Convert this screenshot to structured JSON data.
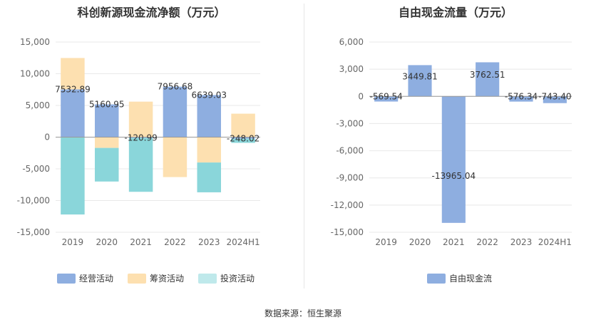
{
  "left": {
    "title": "科创新源现金流净额（万元）",
    "legend": [
      "经营活动",
      "筹资活动",
      "投资活动"
    ]
  },
  "right": {
    "title": "自由现金流量（万元）",
    "legend": [
      "自由现金流"
    ]
  },
  "source": "数据来源：恒生聚源",
  "colors": {
    "operating": "#8eaee0",
    "financing": "#fde0b0",
    "investing": "#8ad6da",
    "free": "#8eaee0",
    "grid": "#e8e8e8",
    "axis": "#999999"
  },
  "chart_data": [
    {
      "type": "bar",
      "stacked": true,
      "title": "科创新源现金流净额（万元）",
      "categories": [
        "2019",
        "2020",
        "2021",
        "2022",
        "2023",
        "2024H1"
      ],
      "ylim": [
        -15000,
        15000
      ],
      "yticks": [
        15000,
        10000,
        5000,
        0,
        -5000,
        -10000,
        -15000
      ],
      "ytick_labels": [
        "15,000",
        "10,000",
        "5,000",
        "0",
        "-5,000",
        "-10,000",
        "-15,000"
      ],
      "series": [
        {
          "name": "经营活动",
          "values": [
            7532.89,
            5160.95,
            -120.99,
            7956.68,
            6639.03,
            -248.02
          ]
        },
        {
          "name": "筹资活动",
          "values": [
            4950,
            -1700,
            5600,
            -6300,
            -4000,
            3700
          ]
        },
        {
          "name": "投资活动",
          "values": [
            -12200,
            -5300,
            -8500,
            0,
            -4700,
            -650
          ]
        }
      ],
      "data_labels": [
        "7532.89",
        "5160.95",
        "-120.99",
        "7956.68",
        "6639.03",
        "-248.02"
      ],
      "legend_position": "bottom"
    },
    {
      "type": "bar",
      "title": "自由现金流量（万元）",
      "categories": [
        "2019",
        "2020",
        "2021",
        "2022",
        "2023",
        "2024H1"
      ],
      "ylim": [
        -15000,
        6000
      ],
      "yticks": [
        6000,
        3000,
        0,
        -3000,
        -6000,
        -9000,
        -12000,
        -15000
      ],
      "ytick_labels": [
        "6,000",
        "3,000",
        "0",
        "-3,000",
        "-6,000",
        "-9,000",
        "-12,000",
        "-15,000"
      ],
      "series": [
        {
          "name": "自由现金流",
          "values": [
            -569.54,
            3449.81,
            -13965.04,
            3762.51,
            -576.34,
            -743.4
          ]
        }
      ],
      "data_labels": [
        "-569.54",
        "3449.81",
        "-13965.04",
        "3762.51",
        "-576.34",
        "-743.40"
      ],
      "legend_position": "bottom"
    }
  ]
}
